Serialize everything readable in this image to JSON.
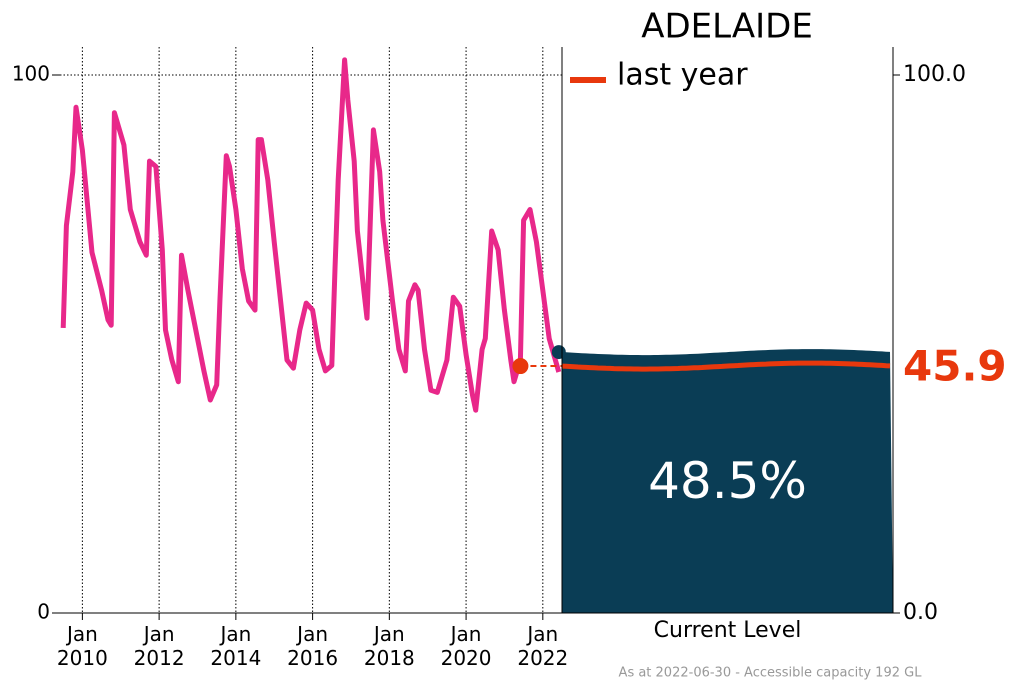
{
  "chart_data": {
    "type": "line",
    "title": "ADELAIDE",
    "x": [
      "2009-07",
      "2009-08",
      "2009-10",
      "2009-11",
      "2010-01",
      "2010-04",
      "2010-07",
      "2010-09",
      "2010-10",
      "2010-11",
      "2011-02",
      "2011-04",
      "2011-07",
      "2011-09",
      "2011-10",
      "2011-12",
      "2012-02",
      "2012-03",
      "2012-05",
      "2012-07",
      "2012-08",
      "2012-10",
      "2013-01",
      "2013-03",
      "2013-05",
      "2013-07",
      "2013-08",
      "2013-10",
      "2013-11",
      "2014-01",
      "2014-03",
      "2014-05",
      "2014-07",
      "2014-08",
      "2014-09",
      "2014-11",
      "2015-01",
      "2015-03",
      "2015-05",
      "2015-07",
      "2015-09",
      "2015-11",
      "2016-01",
      "2016-03",
      "2016-05",
      "2016-07",
      "2016-08",
      "2016-09",
      "2016-10",
      "2016-11",
      "2016-12",
      "2017-02",
      "2017-03",
      "2017-05",
      "2017-06",
      "2017-08",
      "2017-10",
      "2017-11",
      "2018-02",
      "2018-04",
      "2018-06",
      "2018-07",
      "2018-09",
      "2018-10",
      "2018-12",
      "2019-02",
      "2019-04",
      "2019-07",
      "2019-09",
      "2019-11",
      "2020-01",
      "2020-03",
      "2020-04",
      "2020-06",
      "2020-07",
      "2020-09",
      "2020-11",
      "2021-01",
      "2021-03",
      "2021-04",
      "2021-06",
      "2021-07",
      "2021-09",
      "2021-11",
      "2022-01",
      "2022-03",
      "2022-06"
    ],
    "series": [
      {
        "color": "#e8288a",
        "values": [
          53,
          72,
          82,
          94,
          86,
          67,
          60,
          54.5,
          53.5,
          93,
          87,
          75,
          69,
          66.5,
          84,
          83,
          67.5,
          52.6,
          47,
          43,
          66.5,
          60,
          51,
          45,
          39.6,
          42.4,
          58,
          85,
          83,
          75,
          64,
          58,
          56.3,
          88,
          88,
          80.5,
          69,
          58,
          47,
          45.5,
          52.6,
          57.6,
          56.3,
          49,
          45,
          46,
          64,
          80.5,
          91.6,
          102.8,
          95.4,
          84,
          71,
          60,
          54.8,
          89.8,
          82,
          73,
          58,
          49,
          45,
          58,
          61,
          60,
          49,
          41.4,
          41,
          47,
          58.7,
          57,
          48,
          40.5,
          37.7,
          49,
          51,
          71,
          67.5,
          56.3,
          47,
          43,
          47,
          73,
          75,
          69,
          60,
          51,
          44.8
        ]
      }
    ],
    "xlim": [
      "2009-06",
      "2022-07"
    ],
    "xticks": [
      {
        "value": "2010-01",
        "label": [
          "Jan",
          "2010"
        ]
      },
      {
        "value": "2012-01",
        "label": [
          "Jan",
          "2012"
        ]
      },
      {
        "value": "2014-01",
        "label": [
          "Jan",
          "2014"
        ]
      },
      {
        "value": "2016-01",
        "label": [
          "Jan",
          "2016"
        ]
      },
      {
        "value": "2018-01",
        "label": [
          "Jan",
          "2018"
        ]
      },
      {
        "value": "2020-01",
        "label": [
          "Jan",
          "2020"
        ]
      },
      {
        "value": "2022-01",
        "label": [
          "Jan",
          "2022"
        ]
      }
    ],
    "ylim": [
      0,
      100
    ],
    "yticks": [
      0,
      100
    ],
    "y2lim": [
      0,
      100
    ],
    "y2ticks": [
      {
        "value": 0,
        "label": "0.0"
      },
      {
        "value": 100,
        "label": "100.0"
      }
    ],
    "grid": true,
    "current": {
      "label": "Current Level",
      "value": 48.5,
      "value_label": "48.5%",
      "color": "#0a3d55"
    },
    "last_year": {
      "name": "last year",
      "x": "2021-06",
      "value": 45.9,
      "color": "#e8380d"
    },
    "footnote": "As at 2022-06-30 - Accessible capacity 192 GL"
  }
}
